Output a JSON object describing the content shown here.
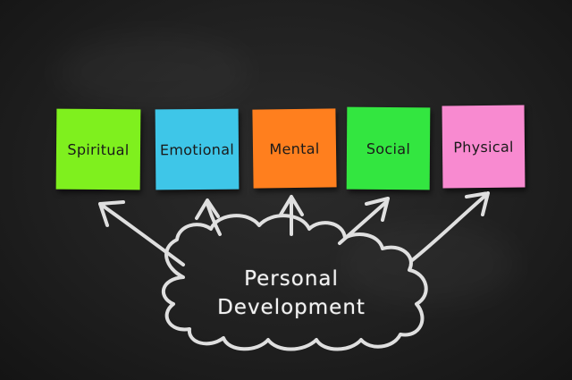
{
  "notes": [
    {
      "label": "Spiritual",
      "color": "#7ff01e"
    },
    {
      "label": "Emotional",
      "color": "#3ec6e8"
    },
    {
      "label": "Mental",
      "color": "#ff7f1e"
    },
    {
      "label": "Social",
      "color": "#33e640"
    },
    {
      "label": "Physical",
      "color": "#f88ad0"
    }
  ],
  "cloud": {
    "line1": "Personal",
    "line2": "Development"
  },
  "colors": {
    "board": "#1e1e1e",
    "chalk": "#f2f2f2"
  }
}
